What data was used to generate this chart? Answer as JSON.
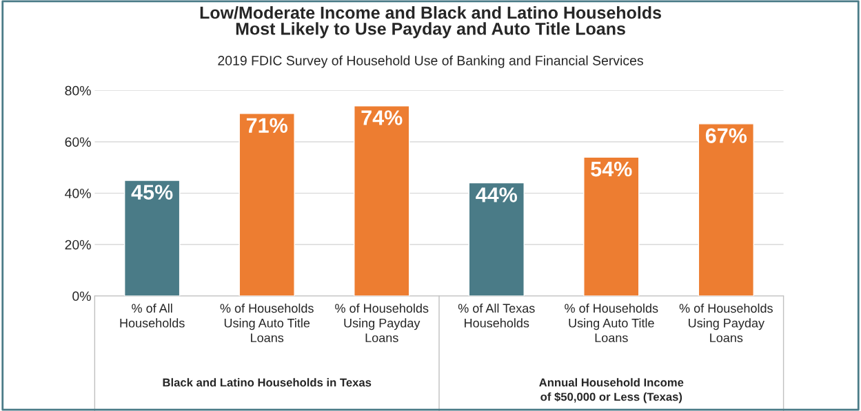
{
  "chart_data": {
    "type": "bar",
    "title": "Low/Moderate Income and Black and Latino Households\nMost Likely to Use Payday and Auto Title Loans",
    "subtitle": "2019 FDIC Survey of Household Use of Banking and Financial Services",
    "categories": [
      "% of All\nHouseholds",
      "% of Households\nUsing Auto Title\nLoans",
      "% of Households\nUsing Payday\nLoans",
      "% of All Texas\nHouseholds",
      "% of Households\nUsing Auto Title\nLoans",
      "% of Households\nUsing Payday\nLoans"
    ],
    "values": [
      45,
      71,
      74,
      44,
      54,
      67
    ],
    "colors": [
      "#4a7b87",
      "#ed7d31",
      "#ed7d31",
      "#4a7b87",
      "#ed7d31",
      "#ed7d31"
    ],
    "value_labels": [
      "45%",
      "71%",
      "74%",
      "44%",
      "54%",
      "67%"
    ],
    "ylim": [
      0,
      80
    ],
    "yticks": [
      {
        "value": 0,
        "label": "0%"
      },
      {
        "value": 20,
        "label": "20%"
      },
      {
        "value": 40,
        "label": "40%"
      },
      {
        "value": 60,
        "label": "60%"
      },
      {
        "value": 80,
        "label": "80%"
      }
    ],
    "grid": "y",
    "annotations": [
      "Black and Latino Households in Texas",
      "Annual Household Income\nof $50,000 or Less (Texas)"
    ]
  }
}
